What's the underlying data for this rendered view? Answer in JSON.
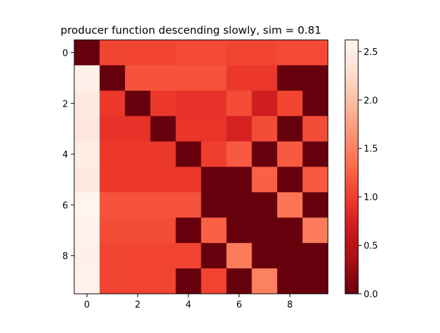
{
  "chart_data": {
    "type": "heatmap",
    "title": "producer function descending slowly, sim = 0.81",
    "xlabel": "",
    "ylabel": "",
    "colormap": "Reds_r",
    "x_ticks": [
      0,
      2,
      4,
      6,
      8
    ],
    "y_ticks": [
      0,
      2,
      4,
      6,
      8
    ],
    "x_tick_labels": [
      "0",
      "2",
      "4",
      "6",
      "8"
    ],
    "y_tick_labels": [
      "0",
      "2",
      "4",
      "6",
      "8"
    ],
    "colorbar": {
      "range": [
        0.0,
        2.62
      ],
      "ticks": [
        0.0,
        0.5,
        1.0,
        1.5,
        2.0,
        2.5
      ],
      "tick_labels": [
        "0.0",
        "0.5",
        "1.0",
        "1.5",
        "2.0",
        "2.5"
      ]
    },
    "grid": false,
    "matrix": [
      [
        0.0,
        1.05,
        1.05,
        1.05,
        1.08,
        1.08,
        1.05,
        1.05,
        1.08,
        1.08
      ],
      [
        2.55,
        0.0,
        1.15,
        1.15,
        1.15,
        1.15,
        0.95,
        0.95,
        0.0,
        0.0
      ],
      [
        2.45,
        0.95,
        0.0,
        0.95,
        0.9,
        0.9,
        1.1,
        0.7,
        1.05,
        0.0
      ],
      [
        2.42,
        0.9,
        0.9,
        0.0,
        0.92,
        0.92,
        0.75,
        1.1,
        0.0,
        1.1
      ],
      [
        2.5,
        0.95,
        0.95,
        0.95,
        0.0,
        1.0,
        1.2,
        0.0,
        1.2,
        0.0
      ],
      [
        2.45,
        0.95,
        0.95,
        0.95,
        0.95,
        0.0,
        0.0,
        1.25,
        0.0,
        1.2
      ],
      [
        2.6,
        1.15,
        1.15,
        1.15,
        1.15,
        0.0,
        0.0,
        0.0,
        1.4,
        0.0
      ],
      [
        2.58,
        1.1,
        1.1,
        1.1,
        0.0,
        1.25,
        0.0,
        0.0,
        0.0,
        1.45
      ],
      [
        2.55,
        1.05,
        1.05,
        1.05,
        1.05,
        0.0,
        1.45,
        0.0,
        0.0,
        0.0
      ],
      [
        2.58,
        1.05,
        1.05,
        1.05,
        0.0,
        1.05,
        0.0,
        1.5,
        0.0,
        0.0
      ]
    ]
  }
}
